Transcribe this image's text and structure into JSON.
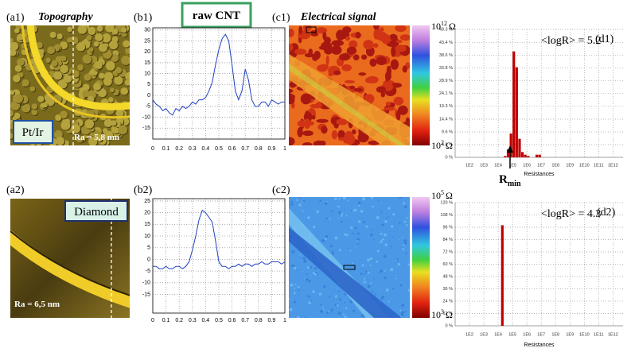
{
  "labels": {
    "a1": "(a1)",
    "b1": "(b1)",
    "c1": "(c1)",
    "d1": "(d1)",
    "a2": "(a2)",
    "b2": "(b2)",
    "c2": "(c2)",
    "d2": "(d2)"
  },
  "headers": {
    "topography": "Topography",
    "raw_cnt": "raw CNT",
    "electrical": "Electrical signal"
  },
  "images": {
    "a1": {
      "tip": "Pt/Ir",
      "roughness": "Ra = 5,8 nm"
    },
    "a2": {
      "tip": "Diamond",
      "roughness": "Ra = 6,5 nm"
    },
    "c1": {
      "colorbar_max": {
        "base": "10",
        "exp": "12",
        "unit": "Ω"
      },
      "colorbar_min": {
        "base": "10",
        "exp": "2",
        "unit": "Ω"
      }
    },
    "c2": {
      "colorbar_max": {
        "base": "10",
        "exp": "5",
        "unit": "Ω"
      },
      "colorbar_min": {
        "base": "10",
        "exp": "3",
        "unit": "Ω"
      }
    }
  },
  "chart_data": [
    {
      "type": "line",
      "color": "#2040c0",
      "grid": true,
      "x": [
        0,
        0.025,
        0.05,
        0.075,
        0.1,
        0.125,
        0.15,
        0.175,
        0.2,
        0.225,
        0.25,
        0.275,
        0.3,
        0.325,
        0.35,
        0.375,
        0.4,
        0.425,
        0.45,
        0.475,
        0.5,
        0.525,
        0.55,
        0.575,
        0.6,
        0.625,
        0.65,
        0.675,
        0.7,
        0.725,
        0.75,
        0.775,
        0.8,
        0.825,
        0.85,
        0.875,
        0.9,
        0.925,
        0.95,
        0.975,
        1
      ],
      "values": [
        -2,
        -4,
        -5,
        -7,
        -6,
        -8,
        -9,
        -6,
        -7,
        -5,
        -6,
        -5,
        -3,
        -4,
        -2,
        -2,
        -1,
        2,
        6,
        14,
        21,
        26,
        28,
        25,
        14,
        2,
        -2,
        2,
        12,
        7,
        -2,
        -5,
        -5,
        -3,
        -3,
        -5,
        -2,
        -3,
        -4,
        -3,
        -3
      ],
      "xlim": [
        0,
        1
      ],
      "ylim": [
        -20,
        31
      ],
      "xticks": [
        0,
        0.1,
        0.2,
        0.3,
        0.4,
        0.5,
        0.6,
        0.7,
        0.8,
        0.9,
        1
      ],
      "yticks": [
        30,
        25,
        20,
        15,
        10,
        5,
        0,
        -5,
        -10,
        -15
      ]
    },
    {
      "type": "line",
      "color": "#2040c0",
      "grid": true,
      "x": [
        0,
        0.025,
        0.05,
        0.075,
        0.1,
        0.125,
        0.15,
        0.175,
        0.2,
        0.225,
        0.25,
        0.275,
        0.3,
        0.325,
        0.35,
        0.375,
        0.4,
        0.425,
        0.45,
        0.475,
        0.5,
        0.525,
        0.55,
        0.575,
        0.6,
        0.625,
        0.65,
        0.675,
        0.7,
        0.725,
        0.75,
        0.775,
        0.8,
        0.825,
        0.85,
        0.875,
        0.9,
        0.925,
        0.95,
        0.975,
        1
      ],
      "values": [
        -3,
        -3,
        -4,
        -4,
        -3,
        -4,
        -4,
        -3,
        -3,
        -4,
        -3,
        -1,
        4,
        10,
        17,
        21,
        20,
        18,
        16,
        8,
        -1,
        -3,
        -3,
        -4,
        -3,
        -3,
        -2,
        -3,
        -2,
        -2,
        -3,
        -2,
        -2,
        -1,
        -2,
        -2,
        -1,
        -1,
        -1,
        -2,
        -1
      ],
      "xlim": [
        0,
        1
      ],
      "ylim": [
        -23,
        26
      ],
      "xticks": [
        0,
        0.1,
        0.2,
        0.3,
        0.4,
        0.5,
        0.6,
        0.7,
        0.8,
        0.9,
        1
      ],
      "yticks": [
        25,
        20,
        15,
        10,
        5,
        0,
        -5,
        -10,
        -15
      ]
    },
    {
      "type": "histogram",
      "color": "#c00000",
      "grid": true,
      "xlabel": "Resistances",
      "annotation": "<logR> = 5.2",
      "arrow_label": {
        "main": "R",
        "sub": "min"
      },
      "bins": [
        4.4,
        4.6,
        4.8,
        5.0,
        5.2,
        5.4,
        5.6,
        5.8,
        6.0,
        6.2,
        6.4,
        6.6,
        6.8,
        7.0
      ],
      "counts": [
        0.5,
        3,
        9,
        40,
        34,
        7,
        2,
        1,
        0.5,
        0,
        0,
        1,
        1
      ],
      "xlim": [
        1,
        12.7
      ],
      "ylim": [
        0,
        48.3
      ],
      "xticks": [
        {
          "value": 2,
          "label": "1E2"
        },
        {
          "value": 3,
          "label": "1E3"
        },
        {
          "value": 4,
          "label": "1E4"
        },
        {
          "value": 5,
          "label": "1E5"
        },
        {
          "value": 6,
          "label": "1E6"
        },
        {
          "value": 7,
          "label": "1E7"
        },
        {
          "value": 8,
          "label": "1E8"
        },
        {
          "value": 9,
          "label": "1E9"
        },
        {
          "value": 10,
          "label": "1E10"
        },
        {
          "value": 11,
          "label": "1E11"
        },
        {
          "value": 12,
          "label": "1E12"
        }
      ],
      "yticks": [
        {
          "value": 0,
          "label": "0 %"
        },
        {
          "value": 4.8,
          "label": "4.8 %"
        },
        {
          "value": 9.6,
          "label": "9.6 %"
        },
        {
          "value": 14.4,
          "label": "14.4 %"
        },
        {
          "value": 19.3,
          "label": "19.3 %"
        },
        {
          "value": 24.1,
          "label": "24.1 %"
        },
        {
          "value": 28.9,
          "label": "28.9 %"
        },
        {
          "value": 33.8,
          "label": "33.8 %"
        },
        {
          "value": 38.6,
          "label": "38.6 %"
        },
        {
          "value": 43.4,
          "label": "43.4 %"
        },
        {
          "value": 48.3,
          "label": "48.3 %"
        }
      ]
    },
    {
      "type": "histogram",
      "color": "#c00000",
      "grid": true,
      "xlabel": "Resistances",
      "annotation": "<logR> = 4.3",
      "bins": [
        4.2,
        4.4
      ],
      "counts": [
        98
      ],
      "xlim": [
        1,
        12.7
      ],
      "ylim": [
        0,
        120
      ],
      "xticks": [
        {
          "value": 2,
          "label": "1E2"
        },
        {
          "value": 3,
          "label": "1E3"
        },
        {
          "value": 4,
          "label": "1E4"
        },
        {
          "value": 5,
          "label": "1E5"
        },
        {
          "value": 6,
          "label": "1E6"
        },
        {
          "value": 7,
          "label": "1E7"
        },
        {
          "value": 8,
          "label": "1E8"
        },
        {
          "value": 9,
          "label": "1E9"
        },
        {
          "value": 10,
          "label": "1E10"
        },
        {
          "value": 11,
          "label": "1E11"
        },
        {
          "value": 12,
          "label": "1E12"
        }
      ],
      "yticks": [
        {
          "value": 0,
          "label": "0 %"
        },
        {
          "value": 12,
          "label": "12 %"
        },
        {
          "value": 24,
          "label": "24 %"
        },
        {
          "value": 36,
          "label": "36 %"
        },
        {
          "value": 48,
          "label": "48 %"
        },
        {
          "value": 60,
          "label": "60 %"
        },
        {
          "value": 72,
          "label": "72 %"
        },
        {
          "value": 84,
          "label": "84 %"
        },
        {
          "value": 96,
          "label": "96 %"
        },
        {
          "value": 108,
          "label": "108 %"
        },
        {
          "value": 120,
          "label": "120 %"
        }
      ]
    }
  ]
}
